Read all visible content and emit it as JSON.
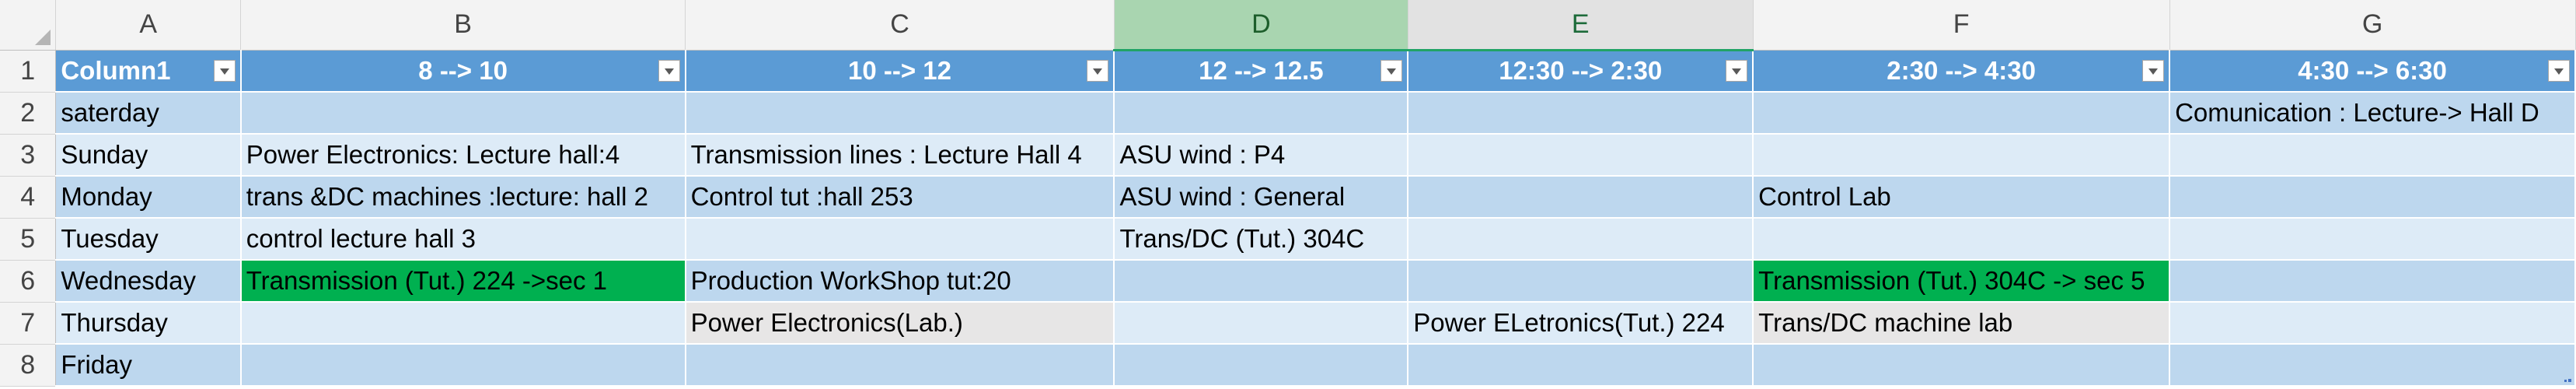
{
  "column_letters": [
    "A",
    "B",
    "C",
    "D",
    "E",
    "F",
    "G"
  ],
  "row_numbers": [
    "1",
    "2",
    "3",
    "4",
    "5",
    "6",
    "7",
    "8"
  ],
  "headers": [
    "Column1",
    "8 --> 10",
    "10 --> 12",
    "12 --> 12.5",
    "12:30 --> 2:30",
    "2:30 --> 4:30",
    "4:30 --> 6:30"
  ],
  "rows": [
    [
      "saterday",
      "",
      "",
      "",
      "",
      "",
      "Comunication : Lecture-> Hall D"
    ],
    [
      "Sunday",
      "Power Electronics: Lecture hall:4",
      "Transmission lines : Lecture Hall 4",
      "ASU wind : P4",
      "",
      "",
      ""
    ],
    [
      "Monday",
      "trans &DC machines :lecture: hall 2",
      "Control tut :hall 253",
      "ASU wind : General",
      "",
      "Control Lab",
      ""
    ],
    [
      "Tuesday",
      "control lecture hall 3",
      "",
      "Trans/DC (Tut.) 304C",
      "",
      "",
      ""
    ],
    [
      "Wednesday",
      "Transmission (Tut.) 224 ->sec 1",
      "Production WorkShop tut:20",
      "",
      "",
      "Transmission (Tut.) 304C -> sec 5",
      ""
    ],
    [
      "Thursday",
      "",
      "Power Electronics(Lab.)",
      "",
      "Power ELetronics(Tut.) 224",
      "Trans/DC machine lab",
      ""
    ],
    [
      "Friday",
      "",
      "",
      "",
      "",
      "",
      ""
    ]
  ],
  "cell_highlights": {
    "green": [
      "B6",
      "F6"
    ],
    "gray": [
      "C7",
      "F7"
    ]
  },
  "selected_columns": [
    "D",
    "E"
  ],
  "colors": {
    "header_fill": "#5b9bd5",
    "band_dark": "#bdd7ee",
    "band_light": "#ddebf7",
    "highlight_green": "#00b050",
    "highlight_gray": "#e7e6e6",
    "selected_column_header": "#a9d5b0"
  }
}
